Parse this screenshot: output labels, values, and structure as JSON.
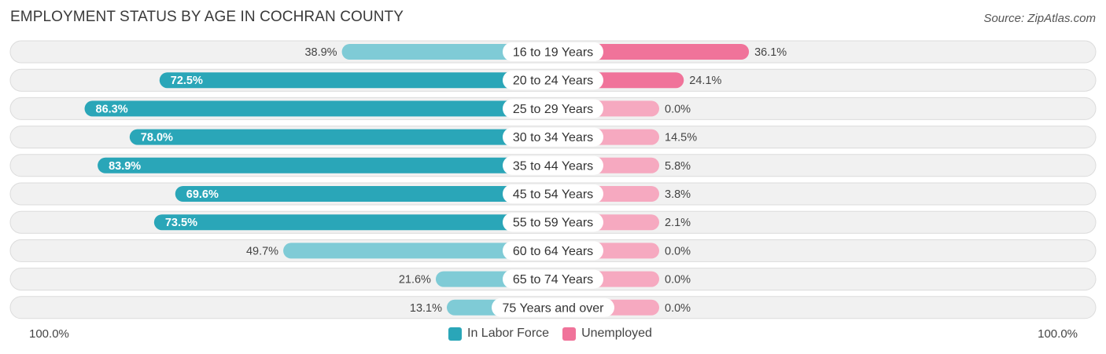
{
  "title": "EMPLOYMENT STATUS BY AGE IN COCHRAN COUNTY",
  "source": "Source: ZipAtlas.com",
  "colors": {
    "labor": "#2aa6b8",
    "labor_light": "#7fcbd6",
    "unemployed": "#f0739a",
    "unemployed_light": "#f6a9c0",
    "row_bg": "#f1f1f1",
    "row_border": "#dcdcdc"
  },
  "axis": {
    "left_label": "100.0%",
    "right_label": "100.0%"
  },
  "legend": {
    "labor_label": "In Labor Force",
    "unemployed_label": "Unemployed"
  },
  "chart_data": {
    "type": "bar",
    "title": "EMPLOYMENT STATUS BY AGE IN COCHRAN COUNTY",
    "orientation": "horizontal-diverging",
    "categories": [
      "16 to 19 Years",
      "20 to 24 Years",
      "25 to 29 Years",
      "30 to 34 Years",
      "35 to 44 Years",
      "45 to 54 Years",
      "55 to 59 Years",
      "60 to 64 Years",
      "65 to 74 Years",
      "75 Years and over"
    ],
    "series": [
      {
        "name": "In Labor Force",
        "values": [
          38.9,
          72.5,
          86.3,
          78.0,
          83.9,
          69.6,
          73.5,
          49.7,
          21.6,
          13.1
        ],
        "labels": [
          "38.9%",
          "72.5%",
          "86.3%",
          "78.0%",
          "83.9%",
          "69.6%",
          "73.5%",
          "49.7%",
          "21.6%",
          "13.1%"
        ]
      },
      {
        "name": "Unemployed",
        "values": [
          36.1,
          24.1,
          0.0,
          14.5,
          5.8,
          3.8,
          2.1,
          0.0,
          0.0,
          0.0
        ],
        "labels": [
          "36.1%",
          "24.1%",
          "0.0%",
          "14.5%",
          "5.8%",
          "3.8%",
          "2.1%",
          "0.0%",
          "0.0%",
          "0.0%"
        ]
      }
    ],
    "xlim": [
      -100,
      100
    ],
    "legend_position": "bottom-center"
  }
}
